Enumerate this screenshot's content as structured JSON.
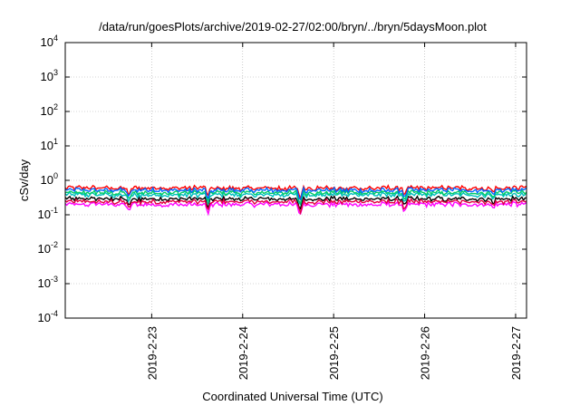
{
  "chart_data": {
    "type": "line",
    "title": "/data/run/goesPlots/archive/2019-02-27/02:00/bryn/../bryn/5daysMoon.plot",
    "xlabel": "Coordinated Universal Time (UTC)",
    "ylabel": "cSv/day",
    "yscale": "log",
    "ylim": [
      0.0001,
      10000
    ],
    "xlim": [
      22.05,
      27.12
    ],
    "grid": true,
    "legend": "none",
    "y_ticks": [
      {
        "value": 0.0001,
        "base": "10",
        "exp": "-4"
      },
      {
        "value": 0.001,
        "base": "10",
        "exp": "-3"
      },
      {
        "value": 0.01,
        "base": "10",
        "exp": "-2"
      },
      {
        "value": 0.1,
        "base": "10",
        "exp": "-1"
      },
      {
        "value": 1,
        "base": "10",
        "exp": "0"
      },
      {
        "value": 10,
        "base": "10",
        "exp": "1"
      },
      {
        "value": 100,
        "base": "10",
        "exp": "2"
      },
      {
        "value": 1000,
        "base": "10",
        "exp": "3"
      },
      {
        "value": 10000,
        "base": "10",
        "exp": "4"
      }
    ],
    "x_ticks": [
      {
        "value": 23,
        "label": "2019-2-23"
      },
      {
        "value": 24,
        "label": "2019-2-24"
      },
      {
        "value": 25,
        "label": "2019-2-25"
      },
      {
        "value": 26,
        "label": "2019-2-26"
      },
      {
        "value": 27,
        "label": "2019-2-27"
      }
    ],
    "series_colors": [
      "#ff00ff",
      "#ff0000",
      "#000000",
      "#00bfbf",
      "#00cc66",
      "#0066ff",
      "#e00040"
    ],
    "series_levels": [
      0.2,
      0.6,
      0.29,
      0.38,
      0.44,
      0.52,
      0.24
    ],
    "dips": [
      {
        "x": 22.75,
        "factor": 0.5
      },
      {
        "x": 23.62,
        "factor": 0.5
      },
      {
        "x": 24.63,
        "factor": 0.4
      },
      {
        "x": 25.78,
        "factor": 0.55
      },
      {
        "x": 26.75,
        "factor": 0.75
      }
    ]
  }
}
